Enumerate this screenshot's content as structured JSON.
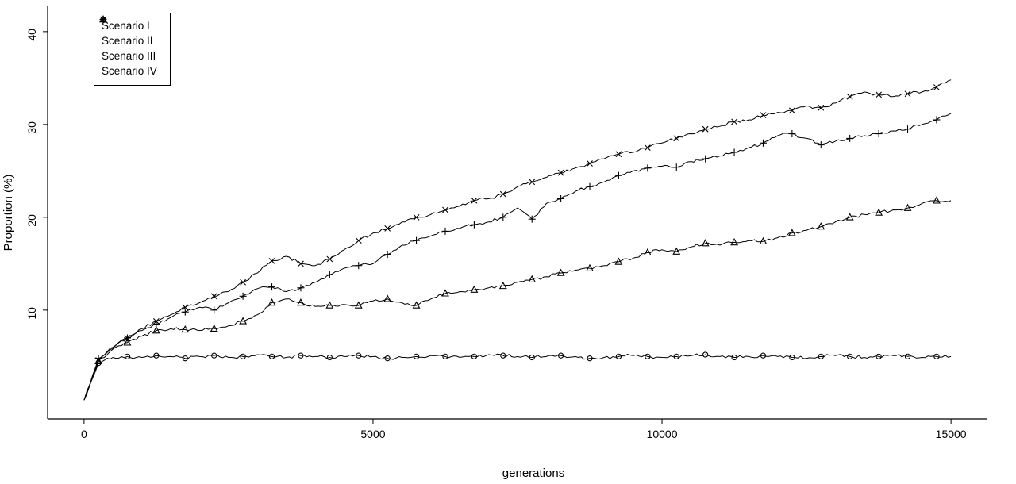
{
  "figure_title": "",
  "chart_data": {
    "type": "line",
    "title": "",
    "xlabel": "generations",
    "ylabel": "Proportion (%)",
    "xlim": [
      0,
      15000
    ],
    "ylim": [
      0,
      41
    ],
    "x_ticks": [
      0,
      5000,
      10000,
      15000
    ],
    "y_ticks": [
      10,
      20,
      30,
      40
    ],
    "grid": false,
    "legend_position": "top-left",
    "line_color": "#000000",
    "x": [
      0,
      250,
      500,
      750,
      1000,
      1250,
      1500,
      1750,
      2000,
      2250,
      2500,
      2750,
      3000,
      3250,
      3500,
      3750,
      4000,
      4250,
      4500,
      4750,
      5000,
      5250,
      5500,
      5750,
      6000,
      6250,
      6500,
      6750,
      7000,
      7250,
      7500,
      7750,
      8000,
      8250,
      8500,
      8750,
      9000,
      9250,
      9500,
      9750,
      10000,
      10250,
      10500,
      10750,
      11000,
      11250,
      11500,
      11750,
      12000,
      12250,
      12500,
      12750,
      13000,
      13250,
      13500,
      13750,
      14000,
      14250,
      14500,
      14750,
      15000
    ],
    "series": [
      {
        "id": "scenario-1",
        "name": "Scenario I",
        "marker": "circle",
        "color": "#000000",
        "values": [
          0.3,
          4.3,
          4.9,
          5.0,
          4.9,
          5.1,
          5.0,
          4.8,
          5.0,
          5.1,
          4.9,
          5.0,
          5.2,
          5.0,
          4.9,
          5.1,
          5.0,
          4.9,
          5.0,
          5.1,
          5.0,
          4.8,
          4.9,
          5.0,
          5.1,
          5.0,
          4.9,
          5.0,
          5.2,
          5.1,
          5.0,
          4.9,
          5.0,
          5.1,
          5.0,
          4.8,
          4.9,
          5.0,
          5.1,
          5.0,
          4.9,
          5.0,
          5.1,
          5.2,
          5.0,
          4.9,
          5.0,
          5.1,
          5.0,
          4.9,
          4.8,
          5.0,
          5.1,
          5.0,
          4.9,
          5.0,
          5.1,
          5.0,
          4.9,
          5.0,
          5.0
        ]
      },
      {
        "id": "scenario-2",
        "name": "Scenario II",
        "marker": "triangle",
        "color": "#000000",
        "values": [
          0.3,
          4.5,
          5.8,
          6.5,
          7.2,
          7.8,
          8.0,
          7.9,
          7.8,
          8.0,
          8.3,
          8.8,
          9.5,
          10.8,
          11.2,
          10.8,
          10.4,
          10.5,
          10.6,
          10.5,
          11.0,
          11.2,
          10.8,
          10.5,
          11.2,
          11.8,
          12.0,
          12.2,
          12.4,
          12.6,
          13.0,
          13.3,
          13.6,
          14.0,
          14.3,
          14.5,
          14.8,
          15.2,
          15.6,
          16.2,
          16.5,
          16.3,
          16.8,
          17.2,
          17.0,
          17.3,
          17.5,
          17.4,
          17.8,
          18.3,
          18.6,
          19.0,
          19.5,
          20.0,
          20.3,
          20.5,
          20.8,
          21.0,
          21.5,
          21.8,
          21.8
        ]
      },
      {
        "id": "scenario-3",
        "name": "Scenario III",
        "marker": "plus",
        "color": "#000000",
        "values": [
          0.3,
          4.8,
          6.0,
          7.0,
          7.8,
          8.5,
          9.2,
          9.8,
          10.3,
          10.0,
          10.8,
          11.5,
          12.3,
          12.5,
          12.0,
          12.4,
          13.0,
          13.8,
          14.5,
          14.8,
          15.0,
          16.0,
          17.0,
          17.5,
          18.0,
          18.5,
          18.8,
          19.2,
          19.5,
          20.0,
          21.0,
          19.8,
          21.5,
          22.0,
          22.8,
          23.3,
          23.8,
          24.5,
          25.0,
          25.3,
          25.5,
          25.4,
          26.0,
          26.3,
          26.6,
          27.0,
          27.5,
          28.0,
          28.8,
          29.0,
          28.5,
          27.8,
          28.2,
          28.5,
          28.8,
          29.0,
          29.3,
          29.5,
          30.0,
          30.5,
          31.2
        ]
      },
      {
        "id": "scenario-4",
        "name": "Scenario IV",
        "marker": "x",
        "color": "#000000",
        "values": [
          0.3,
          4.6,
          5.9,
          7.0,
          8.0,
          8.8,
          9.5,
          10.3,
          10.8,
          11.5,
          12.0,
          13.0,
          14.0,
          15.3,
          15.8,
          15.0,
          14.8,
          15.5,
          16.5,
          17.5,
          18.3,
          18.8,
          19.5,
          20.0,
          20.3,
          20.8,
          21.2,
          21.8,
          22.0,
          22.5,
          23.3,
          23.8,
          24.3,
          24.8,
          25.3,
          25.8,
          26.3,
          26.8,
          27.0,
          27.5,
          28.0,
          28.5,
          29.0,
          29.5,
          29.8,
          30.3,
          30.5,
          31.0,
          31.3,
          31.5,
          32.0,
          31.8,
          32.3,
          33.0,
          33.5,
          33.2,
          33.0,
          33.3,
          33.5,
          34.0,
          34.8
        ]
      }
    ]
  }
}
